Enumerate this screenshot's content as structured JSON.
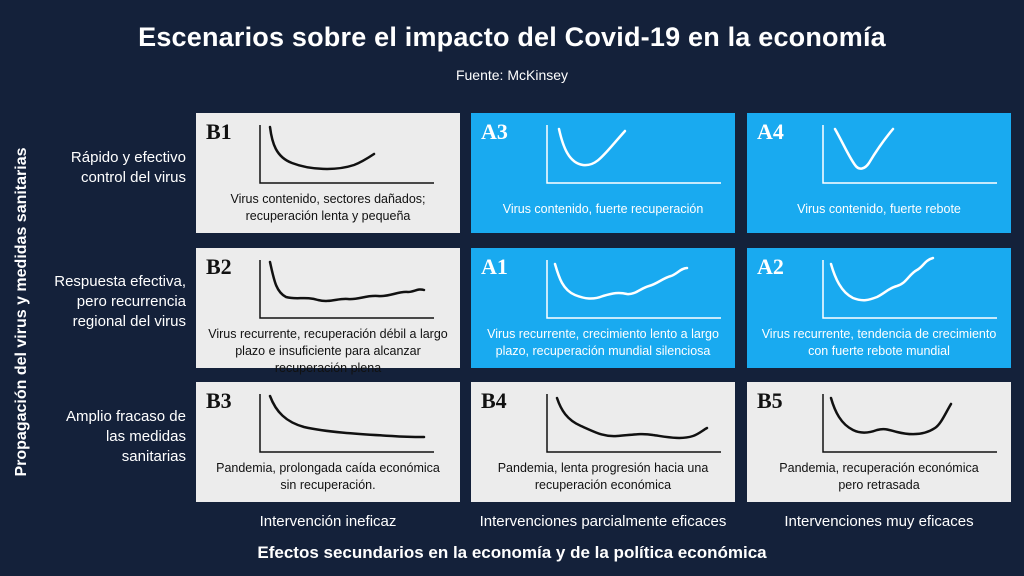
{
  "title": "Escenarios sobre el impacto del Covid-19 en la economía",
  "source": "Fuente: McKinsey",
  "y_axis_label": "Propagación del virus y medidas sanitarias",
  "x_axis_label": "Efectos secundarios en la economía y de la política económica",
  "row_labels": [
    [
      "Rápido y efectivo",
      "control del virus"
    ],
    [
      "Respuesta efectiva,",
      "pero recurrencia",
      "regional del virus"
    ],
    [
      "Amplio fracaso de",
      "las medidas",
      "sanitarias"
    ]
  ],
  "col_labels": [
    "Intervención ineficaz",
    "Intervenciones parcialmente eficaces",
    "Intervenciones muy eficaces"
  ],
  "colors": {
    "background": "#14213a",
    "gray_cell": "#ececec",
    "blue_cell": "#19aaf0"
  },
  "cells": [
    {
      "code": "B1",
      "style": "gray",
      "curve": "slow-u",
      "lines": [
        "Virus contenido, sectores dañados;",
        "recuperación lenta y pequeña"
      ]
    },
    {
      "code": "A3",
      "style": "blue",
      "curve": "u",
      "lines": [
        "Virus contenido, fuerte recuperación"
      ]
    },
    {
      "code": "A4",
      "style": "blue",
      "curve": "v",
      "lines": [
        "Virus contenido, fuerte rebote"
      ]
    },
    {
      "code": "B2",
      "style": "gray",
      "curve": "l-wavy",
      "lines": [
        "Virus recurrente, recuperación débil a largo",
        "plazo e insuficiente para alcanzar",
        "recuperación plena"
      ]
    },
    {
      "code": "A1",
      "style": "blue",
      "curve": "u-wavy-slow",
      "lines": [
        "Virus recurrente, crecimiento lento a largo",
        "plazo, recuperación mundial silenciosa"
      ]
    },
    {
      "code": "A2",
      "style": "blue",
      "curve": "u-wavy-strong",
      "lines": [
        "Virus recurrente, tendencia de crecimiento",
        "con fuerte rebote mundial"
      ]
    },
    {
      "code": "B3",
      "style": "gray",
      "curve": "l-decline",
      "lines": [
        "Pandemia, prolongada caída económica",
        "sin recuperación."
      ]
    },
    {
      "code": "B4",
      "style": "gray",
      "curve": "u-flat-slow",
      "lines": [
        "Pandemia, lenta progresión hacia una",
        "recuperación económica"
      ]
    },
    {
      "code": "B5",
      "style": "gray",
      "curve": "u-flat-late",
      "lines": [
        "Pandemia, recuperación económica",
        "pero retrasada"
      ]
    }
  ]
}
